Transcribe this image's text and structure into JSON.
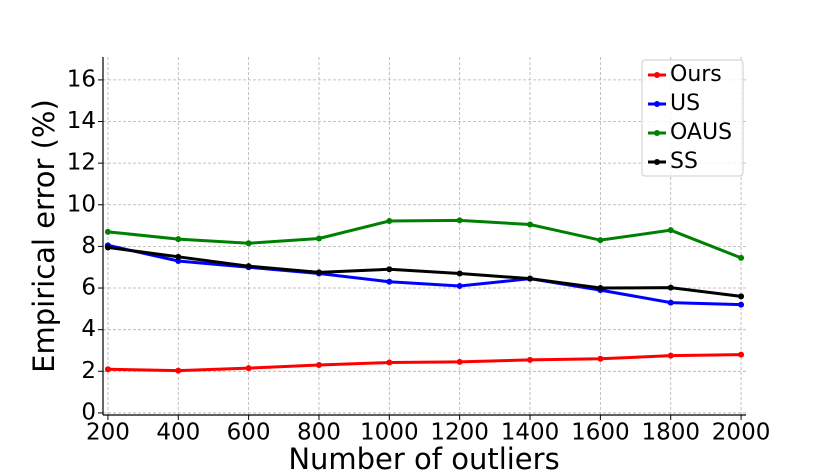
{
  "chart_data": {
    "type": "line",
    "x_label": "Number of outliers",
    "y_label": "Empirical error (%)",
    "x": [
      200,
      400,
      600,
      800,
      1000,
      1200,
      1400,
      1600,
      1800,
      2000
    ],
    "series": [
      {
        "name": "Ours",
        "color": "#ff0000",
        "values": [
          2.1,
          2.03,
          2.15,
          2.3,
          2.42,
          2.45,
          2.55,
          2.6,
          2.75,
          2.8
        ]
      },
      {
        "name": "US",
        "color": "#0000ff",
        "values": [
          8.05,
          7.3,
          7.0,
          6.7,
          6.3,
          6.1,
          6.45,
          5.9,
          5.3,
          5.2
        ]
      },
      {
        "name": "OAUS",
        "color": "#008000",
        "values": [
          8.7,
          8.35,
          8.15,
          8.38,
          9.22,
          9.25,
          9.05,
          8.3,
          8.78,
          7.45
        ]
      },
      {
        "name": "SS",
        "color": "#000000",
        "values": [
          7.95,
          7.5,
          7.05,
          6.75,
          6.9,
          6.7,
          6.45,
          6.0,
          6.02,
          5.6
        ]
      }
    ],
    "xlim": [
      186,
      2014
    ],
    "ylim": [
      -0.1,
      17.1
    ],
    "xticks": [
      200,
      400,
      600,
      800,
      1000,
      1200,
      1400,
      1600,
      1800,
      2000
    ],
    "yticks": [
      0,
      2,
      4,
      6,
      8,
      10,
      12,
      14,
      16
    ],
    "grid": true,
    "legend": "upper right"
  }
}
